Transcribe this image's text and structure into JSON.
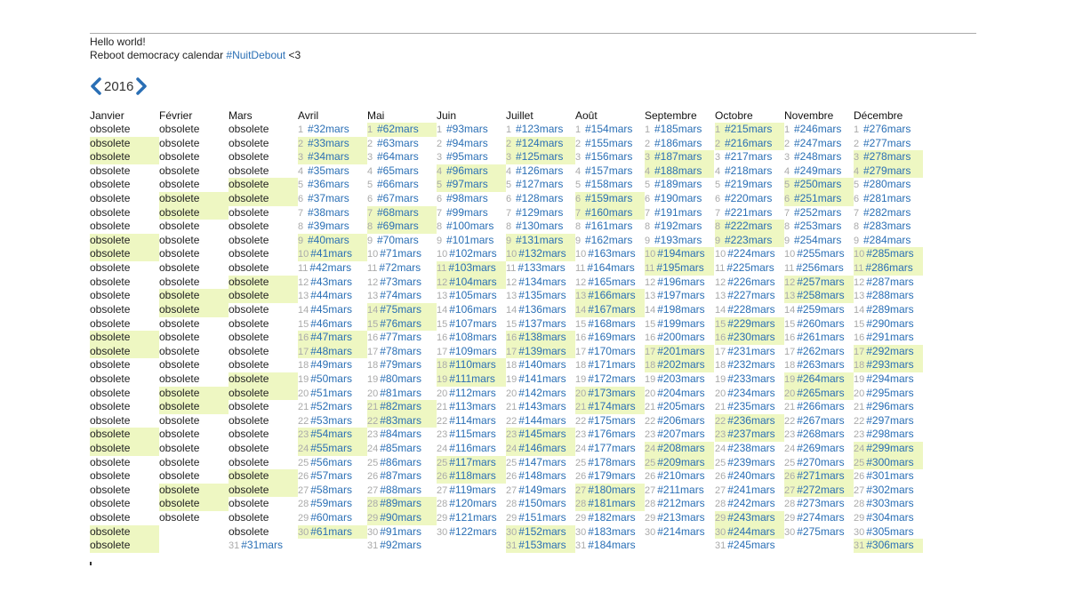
{
  "intro": {
    "line1": "Hello world!",
    "line2_prefix": "Reboot democracy calendar ",
    "line2_link": "#NuitDebout",
    "line2_suffix": " <3"
  },
  "year_nav": {
    "year": "2016",
    "prev_icon": "chevron-left-icon",
    "next_icon": "chevron-right-icon",
    "arrow_color": "#2a6fb5"
  },
  "colors": {
    "highlight": "#eef7c2",
    "link": "#2a6fb5",
    "day_number": "#aaaaaa"
  },
  "months": [
    {
      "name": "Janvier",
      "obsolete_days": 31,
      "highlight": [
        2,
        3,
        9,
        10,
        16,
        17,
        23,
        24,
        30,
        31
      ]
    },
    {
      "name": "Février",
      "obsolete_days": 29,
      "highlight": [
        6,
        7,
        13,
        14,
        20,
        21,
        27,
        28
      ]
    },
    {
      "name": "Mars",
      "obsolete_days": 30,
      "first_tag": 31,
      "highlight": [
        5,
        6,
        12,
        13,
        19,
        20,
        26,
        27
      ]
    },
    {
      "name": "Avril",
      "days": 30,
      "first_tag": 32,
      "highlight": [
        2,
        3,
        9,
        10,
        16,
        17,
        23,
        24,
        30
      ]
    },
    {
      "name": "Mai",
      "days": 31,
      "first_tag": 62,
      "highlight": [
        1,
        7,
        8,
        14,
        15,
        21,
        22,
        28,
        29
      ]
    },
    {
      "name": "Juin",
      "days": 30,
      "first_tag": 93,
      "highlight": [
        4,
        5,
        11,
        12,
        18,
        19,
        25,
        26
      ]
    },
    {
      "name": "Juillet",
      "days": 31,
      "first_tag": 123,
      "highlight": [
        2,
        3,
        9,
        10,
        16,
        17,
        23,
        24,
        30,
        31
      ]
    },
    {
      "name": "Août",
      "days": 31,
      "first_tag": 154,
      "highlight": [
        6,
        7,
        13,
        14,
        20,
        21,
        27,
        28
      ]
    },
    {
      "name": "Septembre",
      "days": 30,
      "first_tag": 185,
      "highlight": [
        3,
        4,
        10,
        11,
        17,
        18,
        24,
        25
      ]
    },
    {
      "name": "Octobre",
      "days": 31,
      "first_tag": 215,
      "highlight": [
        1,
        2,
        8,
        9,
        15,
        16,
        22,
        23,
        29,
        30
      ]
    },
    {
      "name": "Novembre",
      "days": 30,
      "first_tag": 246,
      "highlight": [
        5,
        6,
        12,
        13,
        19,
        20,
        26,
        27
      ]
    },
    {
      "name": "Décembre",
      "days": 31,
      "first_tag": 276,
      "highlight": [
        3,
        4,
        10,
        11,
        17,
        18,
        24,
        25,
        31
      ]
    }
  ],
  "labels": {
    "obsolete": "obsolete",
    "tag_suffix": "mars",
    "tag_prefix": "#"
  },
  "footer_mark": ","
}
